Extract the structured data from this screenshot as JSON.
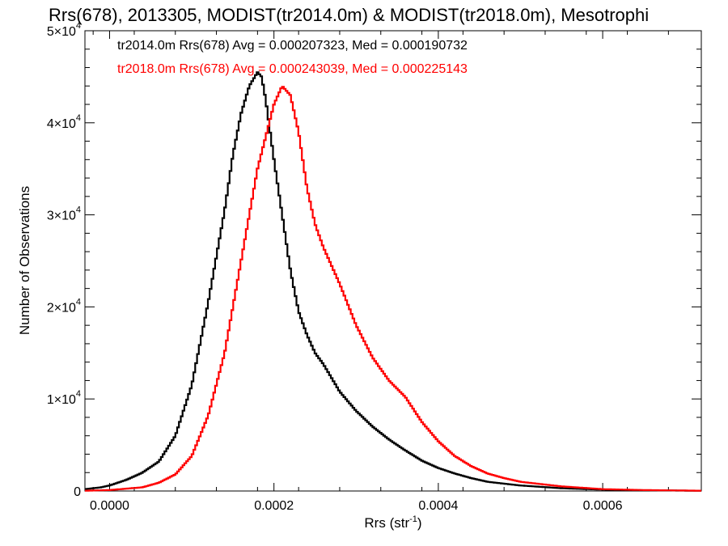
{
  "chart_data": {
    "type": "line",
    "title": "Rrs(678), 2013305, MODIST(tr2014.0m) & MODIST(tr2018.0m), Mesotrophi",
    "xlabel": {
      "main": "Rrs (str",
      "sup": "-1",
      "tail": ")"
    },
    "ylabel": "Number of Observations",
    "xlim": [
      -3e-05,
      0.00072
    ],
    "ylim": [
      0,
      50000
    ],
    "x_ticks": [
      {
        "value": 0.0,
        "label": "0.0000"
      },
      {
        "value": 0.0002,
        "label": "0.0002"
      },
      {
        "value": 0.0004,
        "label": "0.0004"
      },
      {
        "value": 0.0006,
        "label": "0.0006"
      }
    ],
    "y_ticks": [
      {
        "value": 0,
        "mant": "0",
        "exp": ""
      },
      {
        "value": 10000,
        "mant": "1×10",
        "exp": "4"
      },
      {
        "value": 20000,
        "mant": "2×10",
        "exp": "4"
      },
      {
        "value": 30000,
        "mant": "3×10",
        "exp": "4"
      },
      {
        "value": 40000,
        "mant": "4×10",
        "exp": "4"
      },
      {
        "value": 50000,
        "mant": "5×10",
        "exp": "4"
      }
    ],
    "grid": false,
    "series": [
      {
        "name": "tr2014.0m",
        "color": "#000000",
        "annotation": "tr2014.0m Rrs(678) Avg = 0.000207323, Med = 0.000190732",
        "x": [
          -3e-05,
          -1e-05,
          0.0,
          2e-05,
          4e-05,
          6e-05,
          8e-05,
          0.0001,
          0.00012,
          0.00014,
          0.00015,
          0.00016,
          0.00017,
          0.00018,
          0.000185,
          0.00019,
          0.0002,
          0.00021,
          0.00022,
          0.00023,
          0.00024,
          0.00025,
          0.00026,
          0.00028,
          0.0003,
          0.00032,
          0.00034,
          0.00036,
          0.00038,
          0.0004,
          0.00042,
          0.00044,
          0.00046,
          0.0005,
          0.00055,
          0.0006,
          0.00065,
          0.0007,
          0.00072
        ],
        "y": [
          200,
          400,
          600,
          1200,
          2000,
          3200,
          6000,
          11500,
          20500,
          30500,
          36500,
          41000,
          44000,
          45500,
          45000,
          42500,
          36000,
          30000,
          24000,
          19500,
          17000,
          15000,
          13800,
          10800,
          8700,
          7000,
          5600,
          4400,
          3300,
          2500,
          1900,
          1400,
          1000,
          600,
          300,
          150,
          80,
          40,
          30
        ]
      },
      {
        "name": "tr2018.0m",
        "color": "#ff0000",
        "annotation": "tr2018.0m Rrs(678) Avg = 0.000243039, Med = 0.000225143",
        "x": [
          -3e-05,
          0.0,
          4e-05,
          6e-05,
          8e-05,
          0.0001,
          0.00012,
          0.00014,
          0.00016,
          0.00018,
          0.0002,
          0.00021,
          0.00022,
          0.00023,
          0.00024,
          0.00025,
          0.00026,
          0.00028,
          0.0003,
          0.00032,
          0.00034,
          0.00036,
          0.00038,
          0.0004,
          0.00042,
          0.00044,
          0.00046,
          0.00048,
          0.0005,
          0.00055,
          0.0006,
          0.00065,
          0.0007,
          0.00072
        ],
        "y": [
          30,
          100,
          400,
          900,
          1800,
          3800,
          8200,
          15000,
          25000,
          35000,
          42000,
          44000,
          43000,
          39000,
          33000,
          29000,
          26500,
          22500,
          18000,
          14500,
          12000,
          10200,
          7500,
          5400,
          3800,
          2700,
          1900,
          1400,
          1000,
          500,
          200,
          100,
          50,
          30
        ]
      }
    ]
  }
}
